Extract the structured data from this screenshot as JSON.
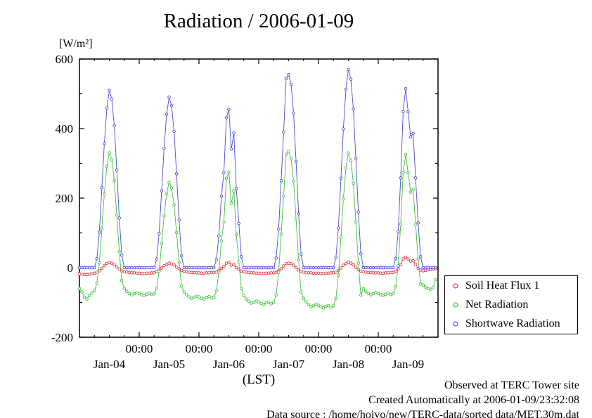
{
  "title": "Radiation / 2006-01-09",
  "y_unit_label": "[W/m²]",
  "x_axis_label": "(LST)",
  "legend": {
    "items": [
      {
        "label": "Soil Heat Flux 1",
        "color": "#e03c3c"
      },
      {
        "label": "Net Radiation",
        "color": "#3cc23c"
      },
      {
        "label": "Shortwave Radiation",
        "color": "#4a4ad2"
      }
    ]
  },
  "footer": {
    "lines": [
      "Observed at TERC Tower site",
      "Created Automatically at 2006-01-09/23:32:08",
      "Data source : /home/hoivo/new/TERC-data/sorted data/MET.30m.dat"
    ]
  },
  "chart_data": {
    "type": "line",
    "title": "Radiation / 2006-01-09",
    "ylabel": "[W/m²]",
    "xlabel": "(LST)",
    "ylim": [
      -200,
      600
    ],
    "y_ticks": [
      -200,
      0,
      200,
      400,
      600
    ],
    "y_minor_step": 100,
    "x_start": "2006-01-04 00:00 LST",
    "x_step_hours": 1,
    "x_total_hours": 144,
    "x_tick_label": "00:00",
    "x_midnight_hours": [
      24,
      48,
      72,
      96,
      120
    ],
    "day_labels": [
      "Jan-04",
      "Jan-05",
      "Jan-06",
      "Jan-07",
      "Jan-08",
      "Jan-09"
    ],
    "legend_position": "right-bottom-outside",
    "grid": false,
    "note": "Values estimated from plot at 1-hour resolution, W/m²",
    "series": [
      {
        "name": "Soil Heat Flux 1",
        "color": "#e03c3c",
        "marker": "circle",
        "values": [
          -18,
          -19,
          -20,
          -20,
          -19,
          -17,
          -16,
          -13,
          -9,
          -2,
          6,
          12,
          15,
          13,
          9,
          2,
          -4,
          -9,
          -12,
          -13,
          -14,
          -15,
          -15,
          -16,
          -16,
          -17,
          -17,
          -16,
          -16,
          -15,
          -15,
          -11,
          -7,
          -1,
          6,
          10,
          13,
          11,
          8,
          2,
          -3,
          -8,
          -11,
          -12,
          -13,
          -14,
          -14,
          -15,
          -15,
          -16,
          -16,
          -15,
          -15,
          -14,
          -14,
          -13,
          -9,
          -2,
          3,
          13,
          15,
          7,
          10,
          0,
          -5,
          -10,
          -12,
          -13,
          -14,
          -15,
          -15,
          -16,
          -16,
          -17,
          -17,
          -16,
          -16,
          -15,
          -15,
          -14,
          -9,
          -3,
          5,
          12,
          13,
          12,
          7,
          0,
          -6,
          -11,
          -13,
          -14,
          -15,
          -15,
          -16,
          -16,
          -16,
          -17,
          -17,
          -16,
          -16,
          -15,
          -15,
          -13,
          -8,
          -1,
          7,
          12,
          15,
          13,
          9,
          1,
          -5,
          -10,
          -12,
          -13,
          -14,
          -14,
          -15,
          -15,
          -15,
          -16,
          -16,
          -15,
          -15,
          -14,
          -14,
          -10,
          -4,
          9,
          25,
          30,
          25,
          19,
          20,
          9,
          -2,
          -7,
          -9,
          -8,
          -6,
          -5,
          -4,
          -3
        ]
      },
      {
        "name": "Net Radiation",
        "color": "#3cc23c",
        "marker": "circle",
        "values": [
          -60,
          -70,
          -85,
          -90,
          -80,
          -72,
          -66,
          -45,
          14,
          113,
          212,
          291,
          330,
          310,
          251,
          152,
          46,
          -37,
          -60,
          -68,
          -74,
          -78,
          -75,
          -72,
          -74,
          -78,
          -80,
          -76,
          -73,
          -77,
          -75,
          -59,
          -11,
          69,
          149,
          213,
          245,
          229,
          181,
          101,
          15,
          -53,
          -70,
          -78,
          -84,
          -88,
          -85,
          -82,
          -84,
          -88,
          -90,
          -86,
          -83,
          -87,
          -85,
          -67,
          -13,
          77,
          131,
          257,
          275,
          185,
          221,
          95,
          16,
          -60,
          -80,
          -90,
          -97,
          -102,
          -100,
          -96,
          -98,
          -103,
          -106,
          -101,
          -99,
          -104,
          -100,
          -78,
          -13,
          96,
          205,
          326,
          335,
          313,
          248,
          139,
          22,
          -70,
          -88,
          -98,
          -106,
          -112,
          -110,
          -105,
          -108,
          -113,
          -116,
          -111,
          -109,
          -114,
          -110,
          -88,
          -22,
          88,
          198,
          286,
          330,
          308,
          242,
          132,
          13,
          -79,
          -60,
          -68,
          -74,
          -78,
          -75,
          -72,
          -74,
          -78,
          -80,
          -76,
          -73,
          -77,
          -75,
          -55,
          5,
          125,
          273,
          325,
          273,
          217,
          225,
          125,
          25,
          -47,
          -50,
          -56,
          -60,
          -62,
          -58,
          -35
        ]
      },
      {
        "name": "Shortwave Radiation",
        "color": "#4a4ad2",
        "marker": "circle",
        "values": [
          0,
          0,
          0,
          0,
          0,
          0,
          0,
          26,
          102,
          230,
          357,
          459,
          510,
          485,
          408,
          281,
          143,
          36,
          0,
          0,
          0,
          0,
          0,
          0,
          0,
          0,
          0,
          0,
          0,
          0,
          0,
          25,
          98,
          221,
          343,
          441,
          490,
          466,
          392,
          270,
          137,
          34,
          0,
          0,
          0,
          0,
          0,
          0,
          0,
          0,
          0,
          0,
          0,
          0,
          0,
          23,
          91,
          205,
          273,
          432,
          455,
          341,
          387,
          228,
          127,
          32,
          0,
          0,
          0,
          0,
          0,
          0,
          0,
          0,
          0,
          0,
          0,
          0,
          0,
          28,
          111,
          250,
          389,
          544,
          555,
          527,
          444,
          305,
          155,
          39,
          0,
          0,
          0,
          0,
          0,
          0,
          0,
          0,
          0,
          0,
          0,
          0,
          0,
          29,
          114,
          257,
          399,
          513,
          570,
          542,
          456,
          314,
          160,
          40,
          0,
          0,
          0,
          0,
          0,
          0,
          0,
          0,
          0,
          0,
          0,
          0,
          0,
          26,
          103,
          258,
          448,
          515,
          448,
          376,
          386,
          258,
          129,
          32,
          0,
          0,
          0,
          0,
          0,
          0
        ]
      }
    ]
  }
}
